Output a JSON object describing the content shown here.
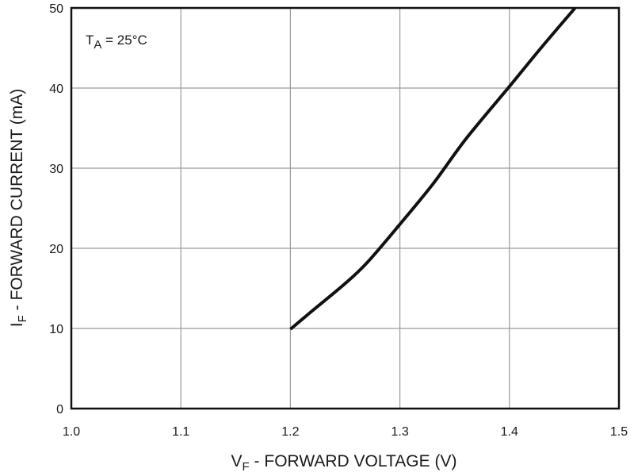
{
  "chart_data": {
    "type": "line",
    "xlabel": {
      "main": "V",
      "sub": "F",
      "rest": " - FORWARD VOLTAGE (V)"
    },
    "ylabel": {
      "main": "I",
      "sub": "F",
      "rest": " - FORWARD CURRENT (mA)"
    },
    "annotation": {
      "main": "T",
      "sub": "A",
      "rest": " = 25°C"
    },
    "xlim": [
      1.0,
      1.5
    ],
    "ylim": [
      0,
      50
    ],
    "xticks": [
      1.0,
      1.1,
      1.2,
      1.3,
      1.4,
      1.5
    ],
    "xtick_labels": [
      "1.0",
      "1.1",
      "1.2",
      "1.3",
      "1.4",
      "1.5"
    ],
    "yticks": [
      0,
      10,
      20,
      30,
      40,
      50
    ],
    "ytick_labels": [
      "0",
      "10",
      "20",
      "30",
      "40",
      "50"
    ],
    "grid": true,
    "series": [
      {
        "color": "#111111",
        "x": [
          1.2,
          1.22,
          1.25,
          1.27,
          1.3,
          1.33,
          1.36,
          1.4,
          1.43,
          1.46
        ],
        "y": [
          9.9,
          12.2,
          15.6,
          18.2,
          23.0,
          28.0,
          33.6,
          40.2,
          45.2,
          50.0
        ]
      }
    ]
  }
}
